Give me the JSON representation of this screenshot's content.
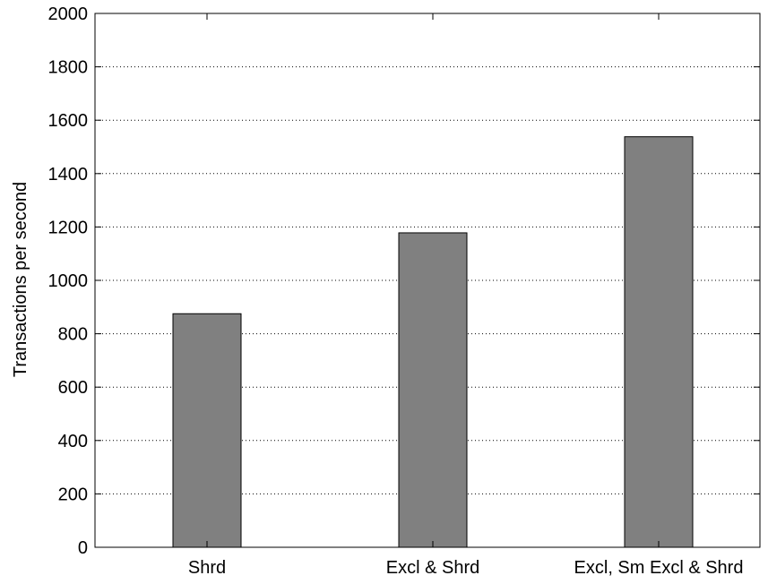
{
  "chart_data": {
    "type": "bar",
    "title": "",
    "xlabel": "",
    "ylabel": "Transactions per second",
    "categories": [
      "Shrd",
      "Excl & Shrd",
      "Excl, Sm Excl & Shrd"
    ],
    "values": [
      875,
      1178,
      1538
    ],
    "ylim": [
      0,
      2000
    ],
    "yticks": [
      0,
      200,
      400,
      600,
      800,
      1000,
      1200,
      1400,
      1600,
      1800,
      2000
    ],
    "grid": "horizontal dotted",
    "legend": "none",
    "colors": {
      "bar_fill": "#808080",
      "bar_stroke": "#000000",
      "axis": "#000000",
      "grid": "#000000"
    }
  }
}
